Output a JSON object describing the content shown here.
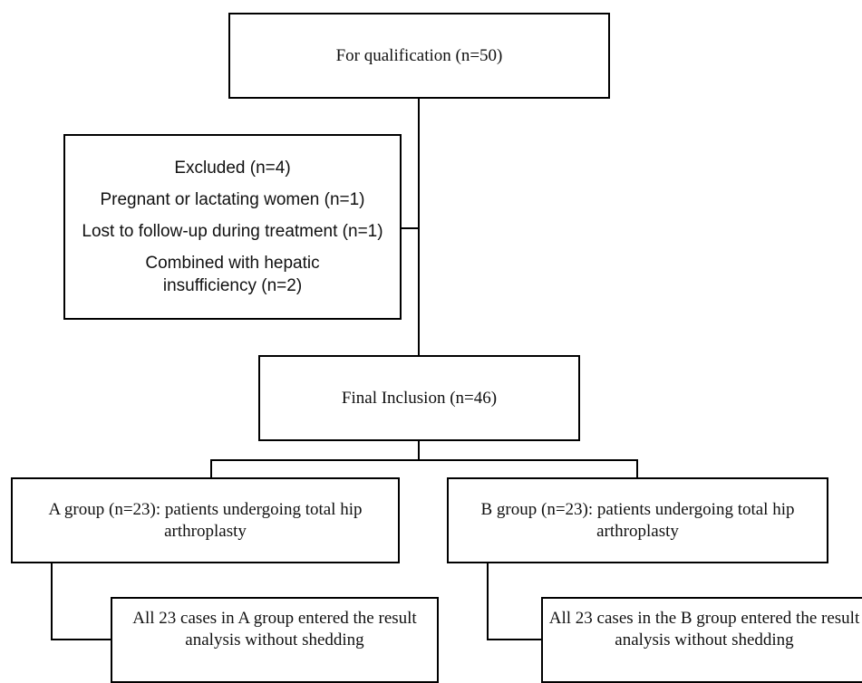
{
  "flowchart": {
    "qualification": {
      "text": "For qualification  (n=50)"
    },
    "excluded": {
      "title": "Excluded (n=4)",
      "reasons": [
        "Pregnant or lactating women (n=1)",
        "Lost to follow-up during treatment (n=1)",
        "Combined with hepatic insufficiency (n=2)"
      ]
    },
    "final_inclusion": {
      "text": "Final Inclusion (n=46)"
    },
    "group_a": {
      "text": "A group (n=23): patients undergoing total hip arthroplasty"
    },
    "group_b": {
      "text": "B group (n=23): patients undergoing total hip arthroplasty"
    },
    "group_a_result": {
      "text": "All 23 cases in A group entered the result analysis without shedding"
    },
    "group_b_result": {
      "text": "All 23 cases in the B group entered the result analysis without shedding"
    }
  },
  "colors": {
    "stroke": "#000000",
    "background": "#ffffff",
    "text": "#111111"
  }
}
